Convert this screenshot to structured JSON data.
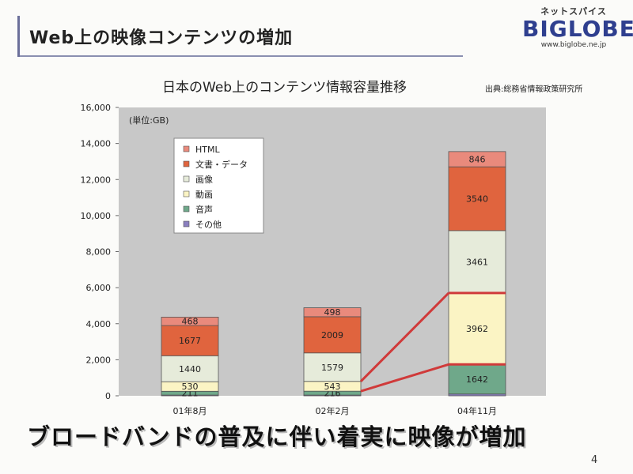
{
  "slide": {
    "title": "Web上の映像コンテンツの増加",
    "headline": "ブロードバンドの普及に伴い着実に映像が増加",
    "page_number": "4"
  },
  "logo": {
    "kana": "ネットスパイス",
    "brand": "BIGLOBE",
    "url": "www.biglobe.ne.jp"
  },
  "source": "出典:総務省情報政策研究所",
  "chart_data": {
    "type": "bar",
    "stacked": true,
    "title": "日本のWeb上のコンテンツ情報容量推移",
    "unit_label": "(単位:GB)",
    "categories": [
      "01年8月",
      "02年2月",
      "04年11月"
    ],
    "ylim": [
      0,
      16000
    ],
    "yticks": [
      "0",
      "2,000",
      "4,000",
      "6,000",
      "8,000",
      "10,000",
      "12,000",
      "14,000",
      "16,000"
    ],
    "ytick_values": [
      0,
      2000,
      4000,
      6000,
      8000,
      10000,
      12000,
      14000,
      16000
    ],
    "grid": false,
    "legend_position": "top-left",
    "series": [
      {
        "name": "その他",
        "color": "#8a7fbf",
        "values": [
          40,
          40,
          100
        ],
        "labels": [
          "",
          "",
          ""
        ]
      },
      {
        "name": "音声",
        "color": "#6fa88a",
        "values": [
          211,
          216,
          1642
        ],
        "labels": [
          "211",
          "216",
          "1642"
        ]
      },
      {
        "name": "動画",
        "color": "#fbf4c4",
        "values": [
          530,
          543,
          3962
        ],
        "labels": [
          "530",
          "543",
          "3962"
        ]
      },
      {
        "name": "画像",
        "color": "#e6ebda",
        "values": [
          1440,
          1579,
          3461
        ],
        "labels": [
          "1440",
          "1579",
          "3461"
        ]
      },
      {
        "name": "文書・データ",
        "color": "#e0643e",
        "values": [
          1677,
          2009,
          3540
        ],
        "labels": [
          "1677",
          "2009",
          "3540"
        ]
      },
      {
        "name": "HTML",
        "color": "#e98a7c",
        "values": [
          468,
          498,
          846
        ],
        "labels": [
          "468",
          "498",
          "846"
        ]
      }
    ],
    "legend_order": [
      "HTML",
      "文書・データ",
      "画像",
      "動画",
      "音声",
      "その他"
    ],
    "colors": {
      "plot_bg": "#c8c8c8",
      "connector": "#d03a3a"
    }
  }
}
